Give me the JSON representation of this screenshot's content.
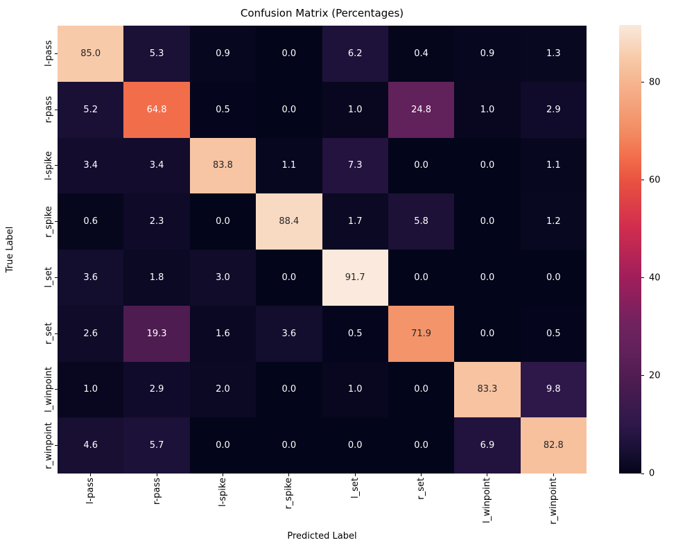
{
  "chart_data": {
    "type": "heatmap",
    "title": "Confusion Matrix (Percentages)",
    "xlabel": "Predicted Label",
    "ylabel": "True Label",
    "x_categories": [
      "l-pass",
      "r-pass",
      "l-spike",
      "r_spike",
      "l_set",
      "r_set",
      "l_winpoint",
      "r_winpoint"
    ],
    "y_categories": [
      "l-pass",
      "r-pass",
      "l-spike",
      "r_spike",
      "l_set",
      "r_set",
      "l_winpoint",
      "r_winpoint"
    ],
    "rows": [
      [
        85.0,
        5.3,
        0.9,
        0.0,
        6.2,
        0.4,
        0.9,
        1.3
      ],
      [
        5.2,
        64.8,
        0.5,
        0.0,
        1.0,
        24.8,
        1.0,
        2.9
      ],
      [
        3.4,
        3.4,
        83.8,
        1.1,
        7.3,
        0.0,
        0.0,
        1.1
      ],
      [
        0.6,
        2.3,
        0.0,
        88.4,
        1.7,
        5.8,
        0.0,
        1.2
      ],
      [
        3.6,
        1.8,
        3.0,
        0.0,
        91.7,
        0.0,
        0.0,
        0.0
      ],
      [
        2.6,
        19.3,
        1.6,
        3.6,
        0.5,
        71.9,
        0.0,
        0.5
      ],
      [
        1.0,
        2.9,
        2.0,
        0.0,
        1.0,
        0.0,
        83.3,
        9.8
      ],
      [
        4.6,
        5.7,
        0.0,
        0.0,
        0.0,
        0.0,
        6.9,
        82.8
      ]
    ],
    "value_format_decimals": 1,
    "vmin": 0,
    "vmax": 91.7,
    "colorbar_ticks": [
      0,
      20,
      40,
      60,
      80
    ],
    "legend_position": "right-colorbar",
    "grid": false,
    "colormap_name": "rocket",
    "colormap_stops": [
      [
        0.0,
        "#03051A"
      ],
      [
        0.05,
        "#180F33"
      ],
      [
        0.11,
        "#2E184A"
      ],
      [
        0.21,
        "#4E1C50"
      ],
      [
        0.27,
        "#61215A"
      ],
      [
        0.33,
        "#6F225E"
      ],
      [
        0.44,
        "#A21E5B"
      ],
      [
        0.55,
        "#D22D4E"
      ],
      [
        0.65,
        "#E85140"
      ],
      [
        0.71,
        "#F3704C"
      ],
      [
        0.76,
        "#F28B61"
      ],
      [
        0.87,
        "#F6B48E"
      ],
      [
        0.93,
        "#F7CBAB"
      ],
      [
        1.0,
        "#FAE9DC"
      ]
    ],
    "annotation_text_dark": "#262626",
    "annotation_text_light": "#FFFFFF",
    "background_color": "#FFFFFF"
  }
}
